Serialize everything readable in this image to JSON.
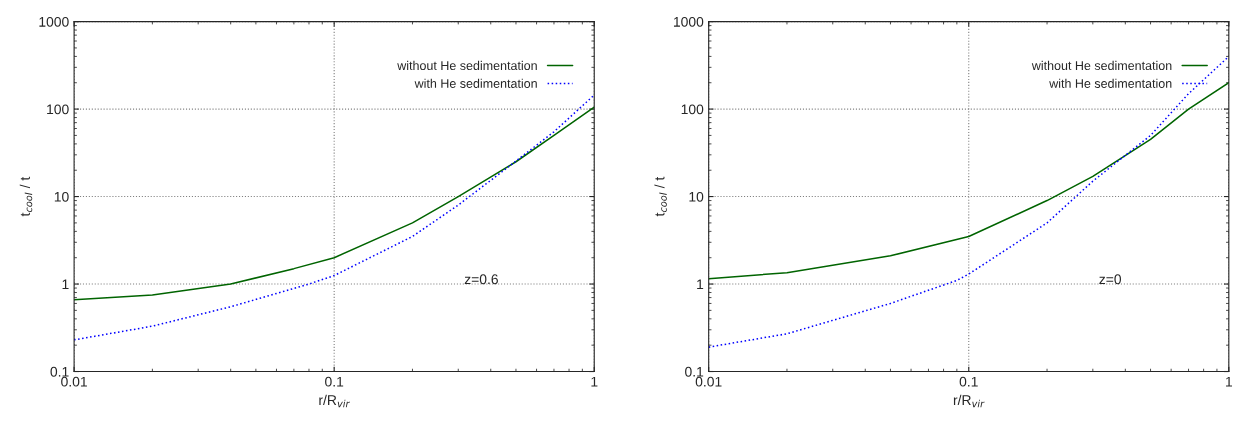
{
  "chart_data": [
    {
      "type": "line",
      "xlabel": "r/R$_{vir}$",
      "ylabel": "t$_{cool}$ / t",
      "log": "xy",
      "xlim": [
        0.01,
        1
      ],
      "ylim": [
        0.1,
        1000
      ],
      "xticks": [
        0.01,
        0.1,
        1
      ],
      "yticks": [
        0.1,
        1,
        10,
        100,
        1000
      ],
      "grid": true,
      "legend": "top right",
      "annotations": [
        "z=0.6"
      ],
      "series": [
        {
          "name": "without He sedimentation",
          "color": "#006400",
          "line_style": "solid",
          "x": [
            0.01,
            0.02,
            0.04,
            0.07,
            0.1,
            0.2,
            0.3,
            0.5,
            0.7,
            1
          ],
          "values": [
            0.66,
            0.75,
            1.0,
            1.5,
            2.0,
            5,
            10,
            25,
            50,
            105
          ]
        },
        {
          "name": "with He sedimentation",
          "color": "#0000ff",
          "line_style": "dotted",
          "x": [
            0.01,
            0.02,
            0.04,
            0.08,
            0.1,
            0.2,
            0.3,
            0.45,
            0.7,
            1
          ],
          "values": [
            0.23,
            0.33,
            0.55,
            1.0,
            1.25,
            3.5,
            8,
            20,
            55,
            145
          ]
        }
      ]
    },
    {
      "type": "line",
      "xlabel": "r/R$_{vir}$",
      "ylabel": "t$_{cool}$ / t",
      "log": "xy",
      "xlim": [
        0.01,
        1
      ],
      "ylim": [
        0.1,
        1000
      ],
      "xticks": [
        0.01,
        0.1,
        1
      ],
      "yticks": [
        0.1,
        1,
        10,
        100,
        1000
      ],
      "grid": true,
      "legend": "top right",
      "annotations": [
        "z=0"
      ],
      "series": [
        {
          "name": "without He sedimentation",
          "color": "#006400",
          "line_style": "solid",
          "x": [
            0.01,
            0.02,
            0.05,
            0.1,
            0.2,
            0.3,
            0.5,
            0.7,
            1
          ],
          "values": [
            1.15,
            1.35,
            2.1,
            3.5,
            9,
            17,
            45,
            100,
            200
          ]
        },
        {
          "name": "with He sedimentation",
          "color": "#0000ff",
          "line_style": "dotted",
          "x": [
            0.01,
            0.02,
            0.05,
            0.09,
            0.1,
            0.2,
            0.3,
            0.5,
            0.7,
            1
          ],
          "values": [
            0.19,
            0.27,
            0.6,
            1.1,
            1.3,
            5,
            15,
            50,
            150,
            400
          ]
        }
      ]
    }
  ]
}
